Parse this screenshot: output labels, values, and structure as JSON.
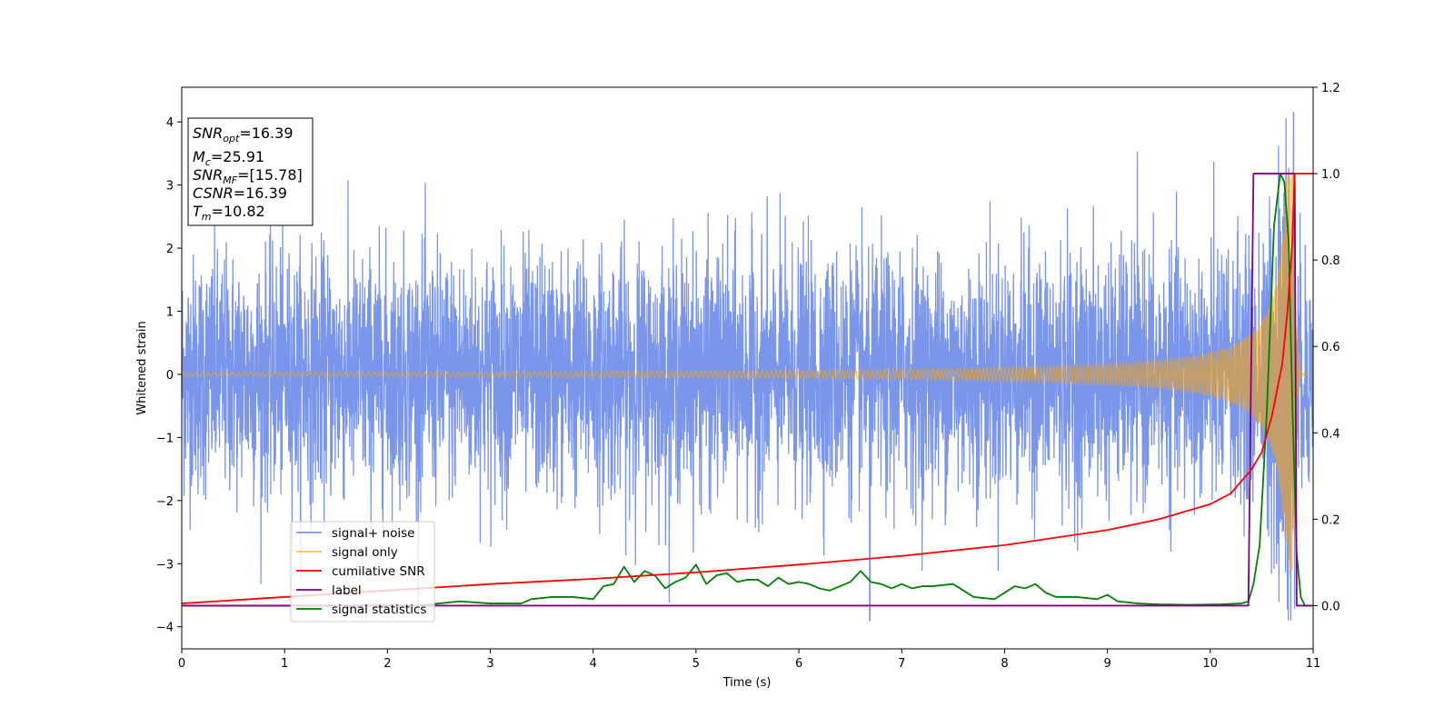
{
  "chart_data": {
    "type": "line",
    "xlabel": "Time (s)",
    "ylabel": "Whitened strain",
    "xlim": [
      0,
      11
    ],
    "ylim_left": [
      -4.35,
      4.55
    ],
    "ylim_right": [
      -0.1,
      1.2
    ],
    "x_ticks": [
      "0",
      "1",
      "2",
      "3",
      "4",
      "5",
      "6",
      "7",
      "8",
      "9",
      "10",
      "11"
    ],
    "y_left_ticks": [
      "−4",
      "−3",
      "−2",
      "−1",
      "0",
      "1",
      "2",
      "3",
      "4"
    ],
    "y_right_ticks": [
      "0.0",
      "0.2",
      "0.4",
      "0.6",
      "0.8",
      "1.0",
      "1.2"
    ],
    "grid": false,
    "legend_position": "lower-left",
    "annotation_box": {
      "line1_main": "SNR",
      "line1_sub": "opt",
      "line1_value": "=16.39",
      "line2_main": "M",
      "line2_sub": "c",
      "line2_value": "=25.91",
      "line3_main": "SNR",
      "line3_sub": "MF",
      "line3_value": "=[15.78]",
      "line4_main": "CSNR",
      "line4_value": "=16.39",
      "line5_main": "T",
      "line5_sub": "m",
      "line5_value": "=10.82"
    },
    "series": [
      {
        "name": "signal+ noise",
        "axis": "left",
        "color": "#4169e1",
        "kind": "noise",
        "typical_amplitude": 1.0,
        "max": 4.15,
        "min": -3.9,
        "peak_time": 10.81
      },
      {
        "name": "signal only",
        "axis": "left",
        "color": "#ffa500",
        "kind": "chirp",
        "merger_time": 10.82,
        "peak_amplitude": 3.2,
        "early_amplitude": 0.03
      },
      {
        "name": "cumilative SNR",
        "axis": "right",
        "color": "#ff0000",
        "x": [
          0,
          1,
          2,
          3,
          4,
          5,
          6,
          7,
          8,
          9,
          9.5,
          10,
          10.2,
          10.4,
          10.5,
          10.6,
          10.7,
          10.75,
          10.8,
          10.82,
          11
        ],
        "y": [
          0.005,
          0.02,
          0.035,
          0.05,
          0.062,
          0.077,
          0.095,
          0.115,
          0.14,
          0.175,
          0.2,
          0.235,
          0.26,
          0.315,
          0.355,
          0.44,
          0.56,
          0.68,
          0.85,
          1.0,
          1.0
        ]
      },
      {
        "name": "label",
        "axis": "right",
        "color": "#800080",
        "x": [
          0,
          10.37,
          10.42,
          10.82,
          10.84,
          11
        ],
        "y": [
          0,
          0,
          1,
          1,
          0,
          0
        ]
      },
      {
        "name": "signal statistics",
        "axis": "right",
        "color": "#008000",
        "x": [
          0,
          2.3,
          2.5,
          2.7,
          3,
          3.3,
          3.4,
          3.6,
          3.8,
          4.0,
          4.1,
          4.2,
          4.3,
          4.4,
          4.5,
          4.6,
          4.7,
          4.8,
          4.9,
          5.0,
          5.1,
          5.2,
          5.3,
          5.4,
          5.5,
          5.6,
          5.7,
          5.8,
          5.9,
          6.0,
          6.1,
          6.2,
          6.3,
          6.5,
          6.6,
          6.7,
          6.8,
          6.9,
          7.0,
          7.1,
          7.2,
          7.3,
          7.5,
          7.7,
          7.9,
          8.1,
          8.2,
          8.3,
          8.4,
          8.5,
          8.7,
          8.9,
          9.0,
          9.1,
          9.3,
          9.5,
          9.8,
          10.1,
          10.3,
          10.37,
          10.42,
          10.48,
          10.55,
          10.62,
          10.68,
          10.72,
          10.76,
          10.8,
          10.84,
          10.88,
          10.92,
          11
        ],
        "y": [
          0,
          0,
          0.005,
          0.01,
          0.005,
          0.005,
          0.015,
          0.02,
          0.02,
          0.015,
          0.045,
          0.05,
          0.09,
          0.055,
          0.08,
          0.07,
          0.04,
          0.055,
          0.065,
          0.095,
          0.05,
          0.07,
          0.075,
          0.055,
          0.06,
          0.06,
          0.045,
          0.065,
          0.05,
          0.055,
          0.05,
          0.04,
          0.035,
          0.055,
          0.08,
          0.055,
          0.05,
          0.04,
          0.05,
          0.04,
          0.045,
          0.045,
          0.05,
          0.02,
          0.015,
          0.045,
          0.04,
          0.05,
          0.03,
          0.02,
          0.02,
          0.015,
          0.025,
          0.01,
          0.005,
          0.003,
          0.002,
          0.003,
          0.005,
          0.01,
          0.05,
          0.14,
          0.45,
          0.88,
          1.0,
          0.98,
          0.85,
          0.45,
          0.12,
          0.02,
          0.0,
          0.0
        ]
      }
    ]
  }
}
